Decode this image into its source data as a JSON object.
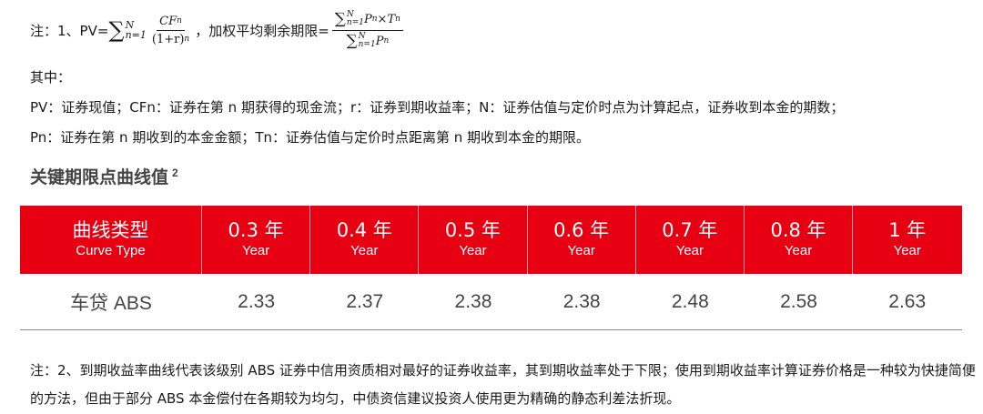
{
  "note1": {
    "prefix": "注：1、PV=",
    "sum_upper": "N",
    "sum_lower": "n=1",
    "cf_symbol": "CF",
    "sub_n": "n",
    "denominator_base": "(1+r)",
    "sup_n": "n",
    "middle_text": "，加权平均剩余期限=",
    "p_symbol": "P",
    "times": "×",
    "t_symbol": "T"
  },
  "intro_label": "其中：",
  "definitions": [
    "PV：证券现值；CFn：证券在第 n 期获得的现金流；r：证券到期收益率；N：证券估值与定价时点为计算起点，证券收到本金的期数；",
    "Pn：证券在第 n 期收到的本金金额；Tn：证券估值与定价时点距离第 n 期收到本金的期限。"
  ],
  "section": {
    "title": "关键期限点曲线值",
    "footnote_mark": "2"
  },
  "table": {
    "header_first": {
      "cn": "曲线类型",
      "en": "Curve Type"
    },
    "columns": [
      {
        "cn": "0.3 年",
        "en": "Year"
      },
      {
        "cn": "0.4 年",
        "en": "Year"
      },
      {
        "cn": "0.5 年",
        "en": "Year"
      },
      {
        "cn": "0.6 年",
        "en": "Year"
      },
      {
        "cn": "0.7 年",
        "en": "Year"
      },
      {
        "cn": "0.8 年",
        "en": "Year"
      },
      {
        "cn": "1 年",
        "en": "Year"
      }
    ],
    "row": {
      "label": "车贷 ABS",
      "values": [
        "2.33",
        "2.37",
        "2.38",
        "2.38",
        "2.48",
        "2.58",
        "2.63"
      ]
    },
    "header_color": "#e60012"
  },
  "note2": "注：2、到期收益率曲线代表该级别 ABS 证券中信用资质相对最好的证券收益率，其到期收益率处于下限；使用到期收益率计算证券价格是一种较为快捷简便的方法，但由于部分 ABS 本金偿付在各期较为均匀，中债资信建议投资人使用更为精确的静态利差法折现。"
}
